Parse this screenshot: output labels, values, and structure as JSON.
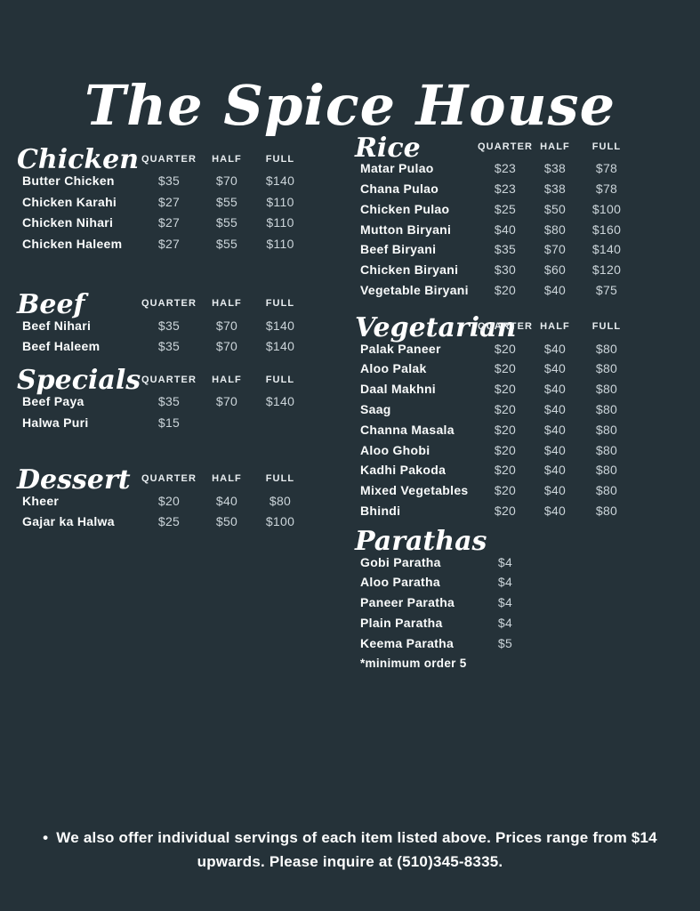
{
  "title": "The Spice House",
  "price_headers": [
    "QUARTER",
    "HALF",
    "FULL"
  ],
  "colors": {
    "background": "#253239",
    "heading_text": "#FFFFFF",
    "item_text": "#FAFCFC",
    "price_text": "#CCD5DA"
  },
  "columns": {
    "left": [
      {
        "heading": "Chicken",
        "show_price_headers": true,
        "items": [
          {
            "name": "Butter Chicken",
            "quarter": "$35",
            "half": "$70",
            "full": "$140"
          },
          {
            "name": "Chicken Karahi",
            "quarter": "$27",
            "half": "$55",
            "full": "$110"
          },
          {
            "name": "Chicken Nihari",
            "quarter": "$27",
            "half": "$55",
            "full": "$110"
          },
          {
            "name": "Chicken Haleem",
            "quarter": "$27",
            "half": "$55",
            "full": "$110"
          }
        ]
      },
      {
        "heading": "Beef",
        "show_price_headers": true,
        "items": [
          {
            "name": "Beef Nihari",
            "quarter": "$35",
            "half": "$70",
            "full": "$140"
          },
          {
            "name": "Beef Haleem",
            "quarter": "$35",
            "half": "$70",
            "full": "$140"
          }
        ]
      },
      {
        "heading": "Specials",
        "show_price_headers": true,
        "items": [
          {
            "name": "Beef Paya",
            "quarter": "$35",
            "half": "$70",
            "full": "$140"
          },
          {
            "name": "Halwa Puri",
            "quarter": "$15",
            "half": "",
            "full": ""
          }
        ]
      },
      {
        "heading": "Dessert",
        "show_price_headers": true,
        "items": [
          {
            "name": "Kheer",
            "quarter": "$20",
            "half": "$40",
            "full": "$80"
          },
          {
            "name": "Gajar ka Halwa",
            "quarter": "$25",
            "half": "$50",
            "full": "$100"
          }
        ]
      }
    ],
    "right": [
      {
        "heading": "Rice",
        "show_price_headers": true,
        "items": [
          {
            "name": "Matar Pulao",
            "quarter": "$23",
            "half": "$38",
            "full": "$78"
          },
          {
            "name": "Chana Pulao",
            "quarter": "$23",
            "half": "$38",
            "full": "$78"
          },
          {
            "name": "Chicken Pulao",
            "quarter": "$25",
            "half": "$50",
            "full": "$100"
          },
          {
            "name": "Mutton Biryani",
            "quarter": "$40",
            "half": "$80",
            "full": "$160"
          },
          {
            "name": "Beef Biryani",
            "quarter": "$35",
            "half": "$70",
            "full": "$140"
          },
          {
            "name": "Chicken Biryani",
            "quarter": "$30",
            "half": "$60",
            "full": "$120"
          },
          {
            "name": "Vegetable Biryani",
            "quarter": "$20",
            "half": "$40",
            "full": "$75"
          }
        ]
      },
      {
        "heading": "Vegetarian",
        "show_price_headers": true,
        "items": [
          {
            "name": "Palak Paneer",
            "quarter": "$20",
            "half": "$40",
            "full": "$80"
          },
          {
            "name": "Aloo Palak",
            "quarter": "$20",
            "half": "$40",
            "full": "$80"
          },
          {
            "name": "Daal Makhni",
            "quarter": "$20",
            "half": "$40",
            "full": "$80"
          },
          {
            "name": "Saag",
            "quarter": "$20",
            "half": "$40",
            "full": "$80"
          },
          {
            "name": "Channa Masala",
            "quarter": "$20",
            "half": "$40",
            "full": "$80"
          },
          {
            "name": "Aloo Ghobi",
            "quarter": "$20",
            "half": "$40",
            "full": "$80"
          },
          {
            "name": "Kadhi Pakoda",
            "quarter": "$20",
            "half": "$40",
            "full": "$80"
          },
          {
            "name": "Mixed Vegetables",
            "quarter": "$20",
            "half": "$40",
            "full": "$80"
          },
          {
            "name": "Bhindi",
            "quarter": "$20",
            "half": "$40",
            "full": "$80"
          }
        ]
      },
      {
        "heading": "Parathas",
        "show_price_headers": false,
        "items": [
          {
            "name": "Gobi Paratha",
            "quarter": "$4",
            "half": "",
            "full": ""
          },
          {
            "name": "Aloo Paratha",
            "quarter": "$4",
            "half": "",
            "full": ""
          },
          {
            "name": "Paneer Paratha",
            "quarter": "$4",
            "half": "",
            "full": ""
          },
          {
            "name": "Plain Paratha",
            "quarter": "$4",
            "half": "",
            "full": ""
          },
          {
            "name": "Keema Paratha",
            "quarter": "$5",
            "half": "",
            "full": ""
          }
        ],
        "note": "*minimum order 5"
      }
    ]
  },
  "footer": {
    "bullet": "•",
    "text": "We also offer individual servings of each item listed above. Prices range from $14 upwards. Please inquire at (510)345-8335."
  }
}
